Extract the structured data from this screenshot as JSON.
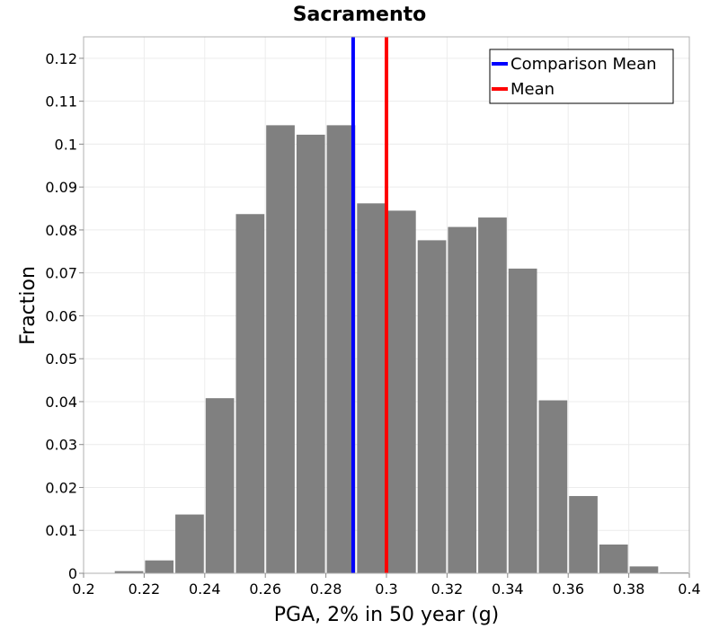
{
  "chart_data": {
    "type": "bar",
    "title": "Sacramento",
    "xlabel": "PGA, 2% in 50 year (g)",
    "ylabel": "Fraction",
    "xlim": [
      0.2,
      0.4
    ],
    "ylim": [
      0,
      0.125
    ],
    "x_ticks": [
      "0.2",
      "0.22",
      "0.24",
      "0.26",
      "0.28",
      "0.3",
      "0.32",
      "0.34",
      "0.36",
      "0.38",
      "0.4"
    ],
    "y_ticks": [
      "0",
      "0.01",
      "0.02",
      "0.03",
      "0.04",
      "0.05",
      "0.06",
      "0.07",
      "0.08",
      "0.09",
      "0.1",
      "0.11",
      "0.12"
    ],
    "grid": true,
    "legend_position": "top-right",
    "bar_color": "#808080",
    "bin_width": 0.01,
    "bin_starts": [
      0.21,
      0.22,
      0.23,
      0.24,
      0.25,
      0.26,
      0.27,
      0.28,
      0.29,
      0.3,
      0.31,
      0.32,
      0.33,
      0.34,
      0.35,
      0.36,
      0.37,
      0.38,
      0.39
    ],
    "values": [
      0.0005,
      0.003,
      0.0137,
      0.0408,
      0.0837,
      0.1044,
      0.1022,
      0.1044,
      0.0862,
      0.0845,
      0.0776,
      0.0807,
      0.0829,
      0.071,
      0.0403,
      0.018,
      0.0067,
      0.0016,
      0.0002
    ],
    "lines": [
      {
        "name": "Comparison Mean",
        "x": 0.289,
        "color": "#0000ff"
      },
      {
        "name": "Mean",
        "x": 0.3,
        "color": "#ff0000"
      }
    ]
  }
}
